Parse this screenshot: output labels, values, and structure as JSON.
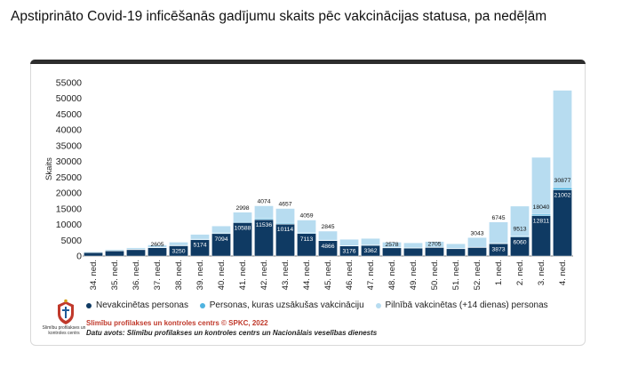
{
  "title": "Apstiprināto Covid-19 inficēšanās gadījumu skaits pēc vakcinācijas statusa, pa nedēļām",
  "legend": {
    "unvaccinated": "Nevakcinētas personas",
    "started": "Personas, kuras uzsākušas vakcināciju",
    "full": "Pilnībā vakcinētas (+14 dienas) personas"
  },
  "credit": "Slimību profilakses un kontroles centrs © SPKC, 2022",
  "source": "Datu avots: Slimību profilakses un kontroles centrs un Nacionālais veselības dienests",
  "logo_caption": "Slimību profilakses un kontroles centrs",
  "colors": {
    "unvaccinated": "#0f3a63",
    "started": "#4fb3e0",
    "full": "#b7dcf0",
    "top_bar": "#2d2d2d"
  },
  "chart_data": {
    "type": "bar",
    "stacked": true,
    "ylabel": "Skaits",
    "ylim": [
      0,
      55000
    ],
    "yticks": [
      0,
      5000,
      10000,
      15000,
      20000,
      25000,
      30000,
      35000,
      40000,
      45000,
      50000,
      55000
    ],
    "grid": false,
    "legend_position": "bottom",
    "categories": [
      "34. ned.",
      "35. ned.",
      "36. ned.",
      "37. ned.",
      "38. ned.",
      "39. ned.",
      "40. ned.",
      "41. ned.",
      "42. ned.",
      "43. ned.",
      "44. ned.",
      "45. ned.",
      "46. ned.",
      "47. ned.",
      "48. ned.",
      "49. ned.",
      "50. ned.",
      "51. ned.",
      "52. ned.",
      "1. ned.",
      "2. ned.",
      "3. ned.",
      "4. ned."
    ],
    "series": [
      {
        "name": "Nevakcinētas personas",
        "values": [
          1100,
          1600,
          2000,
          2605,
          3250,
          5174,
          7094,
          10588,
          11536,
          10114,
          7113,
          4866,
          3176,
          3362,
          2578,
          2500,
          2705,
          2300,
          2700,
          3873,
          6060,
          12811,
          21002
        ],
        "labels": [
          "",
          "",
          "",
          "2605",
          "3250",
          "5174",
          "7094",
          "10588",
          "11536",
          "10114",
          "7113",
          "4866",
          "3176",
          "3362",
          "2578",
          "",
          "2705",
          "",
          "",
          "3873",
          "6060",
          "12811",
          "21002"
        ]
      },
      {
        "name": "Personas, kuras uzsākušas vakcināciju",
        "values": [
          60,
          80,
          100,
          110,
          130,
          180,
          230,
          300,
          320,
          300,
          240,
          180,
          120,
          120,
          100,
          90,
          90,
          90,
          100,
          150,
          250,
          450,
          700
        ],
        "labels": []
      },
      {
        "name": "Pilnībā vakcinētas (+14 dienas) personas",
        "values": [
          250,
          350,
          500,
          800,
          1000,
          1500,
          2200,
          2998,
          4074,
          4657,
          4059,
          2845,
          2000,
          2100,
          1700,
          1600,
          1800,
          1500,
          3043,
          6745,
          9513,
          18040,
          30877
        ],
        "labels": [
          "",
          "",
          "",
          "",
          "",
          "",
          "",
          "2998",
          "4074",
          "4657",
          "4059",
          "2845",
          "",
          "",
          "",
          "",
          "",
          "",
          "3043",
          "6745",
          "9513",
          "18040",
          "30877"
        ]
      }
    ]
  }
}
